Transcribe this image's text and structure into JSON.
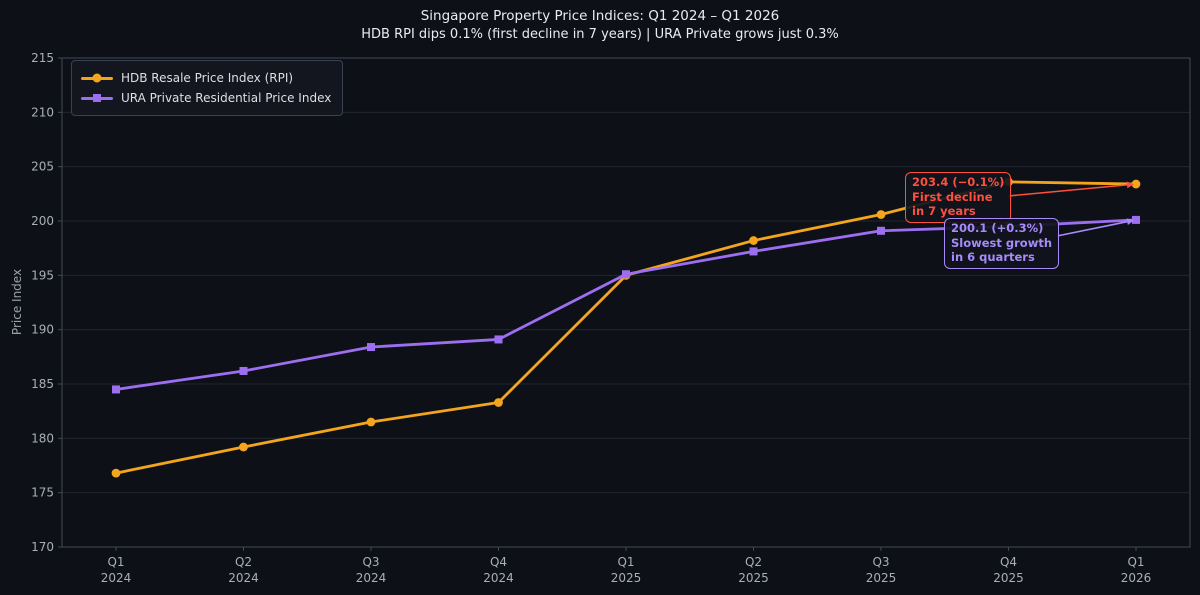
{
  "chart_data": {
    "type": "line",
    "title": "Singapore Property Price Indices: Q1 2024 – Q1 2026",
    "subtitle": "HDB RPI dips 0.1% (first decline in 7 years) | URA Private grows just 0.3%",
    "xlabel": "",
    "ylabel": "Price Index",
    "ylim": [
      170,
      215
    ],
    "ytick_step": 5,
    "grid": "horizontal",
    "legend_position": "upper left",
    "categories": [
      "Q1 2024",
      "Q2 2024",
      "Q3 2024",
      "Q4 2024",
      "Q1 2025",
      "Q2 2025",
      "Q3 2025",
      "Q4 2025",
      "Q1 2026"
    ],
    "series": [
      {
        "id": "hdb",
        "name": "HDB Resale Price Index (RPI)",
        "color": "#f5a51d",
        "marker": "circle",
        "values": [
          176.8,
          179.2,
          181.5,
          183.3,
          195.0,
          198.2,
          200.6,
          203.6,
          203.4
        ]
      },
      {
        "id": "ura",
        "name": "URA Private Residential Price Index",
        "color": "#9d6ff0",
        "marker": "square",
        "values": [
          184.5,
          186.2,
          188.4,
          189.1,
          195.1,
          197.2,
          199.1,
          199.5,
          200.1
        ]
      }
    ],
    "yticks": [
      170,
      175,
      180,
      185,
      190,
      195,
      200,
      205,
      210,
      215
    ]
  },
  "annotations": [
    {
      "id": "hdb",
      "color": "#ff4f3d",
      "lines": [
        "203.4 (−0.1%)",
        "First decline",
        "in 7 years"
      ],
      "target": {
        "series": 0,
        "index": 8
      }
    },
    {
      "id": "ura",
      "color": "#a78bfa",
      "lines": [
        "200.1 (+0.3%)",
        "Slowest growth",
        "in 6 quarters"
      ],
      "target": {
        "series": 1,
        "index": 8
      }
    }
  ],
  "style_colors": {
    "background": "#0d1117",
    "spine": "#414854",
    "grid": "#212631",
    "tick_label": "#a9aeb7",
    "title": "#e9ebee"
  }
}
